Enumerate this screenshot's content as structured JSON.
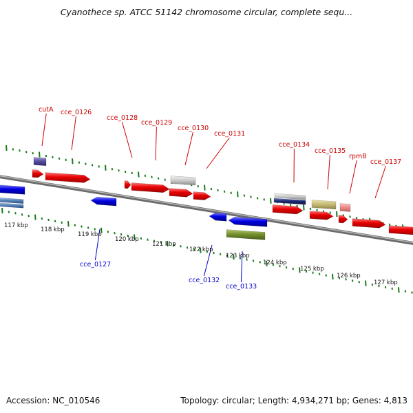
{
  "title": "Cyanothece sp. ATCC 51142 chromosome circular, complete sequ...",
  "footer": {
    "accession": "Accession: NC_010546",
    "summary": "Topology: circular; Length: 4,934,271 bp; Genes: 4,813"
  },
  "colors": {
    "forward_label": "#cc0000",
    "reverse_label": "#0000cc",
    "tick": "#1a7a1a",
    "backbone": "#8a8a8a"
  },
  "kbp_labels": [
    "117 kbp",
    "118 kbp",
    "119 kbp",
    "120 kbp",
    "121 kbp",
    "122 kbp",
    "123 kbp",
    "124 kbp",
    "125 kbp",
    "126 kbp",
    "127 kbp"
  ],
  "forward_gene_labels": [
    "cutA",
    "cce_0126",
    "cce_0128",
    "cce_0129",
    "cce_0130",
    "cce_0131",
    "cce_0134",
    "cce_0135",
    "rpmB",
    "cce_0137"
  ],
  "reverse_gene_labels": [
    "cce_0127",
    "cce_0132",
    "cce_0133"
  ]
}
